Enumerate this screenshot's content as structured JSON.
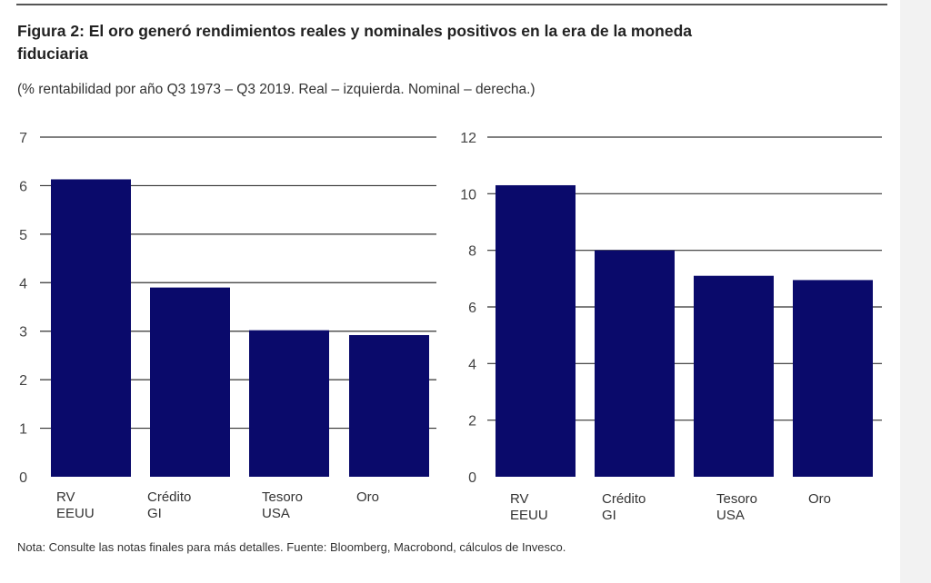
{
  "header": {
    "title": "Figura 2: El oro generó rendimientos reales y nominales positivos en la era de la moneda fiduciaria",
    "subtitle": "(% rentabilidad por año Q3 1973 – Q3 2019. Real – izquierda. Nominal  – derecha.)"
  },
  "footer": {
    "note": "Nota: Consulte las notas finales para más detalles. Fuente: Bloomberg, Macrobond, cálculos de Invesco."
  },
  "colors": {
    "bar": "#0a0a6b",
    "grid": "#333333",
    "axis_text": "#444444"
  },
  "chart_data": [
    {
      "type": "bar",
      "title": "",
      "xlabel": "",
      "ylabel": "",
      "categories": [
        [
          "RV",
          "EEUU"
        ],
        [
          "Crédito",
          "GI"
        ],
        [
          "Tesoro",
          "USA"
        ],
        [
          "Oro"
        ]
      ],
      "values": [
        6.13,
        3.9,
        3.02,
        2.92
      ],
      "ylim": [
        0,
        7
      ],
      "yticks": [
        0,
        1,
        2,
        3,
        4,
        5,
        6,
        7
      ],
      "grid": true
    },
    {
      "type": "bar",
      "title": "",
      "xlabel": "",
      "ylabel": "",
      "categories": [
        [
          "RV",
          "EEUU"
        ],
        [
          "Crédito",
          "GI"
        ],
        [
          "Tesoro",
          "USA"
        ],
        [
          "Oro"
        ]
      ],
      "values": [
        10.3,
        8.0,
        7.1,
        6.95
      ],
      "ylim": [
        0,
        12
      ],
      "yticks": [
        0,
        2,
        4,
        6,
        8,
        10,
        12
      ],
      "grid": true
    }
  ]
}
